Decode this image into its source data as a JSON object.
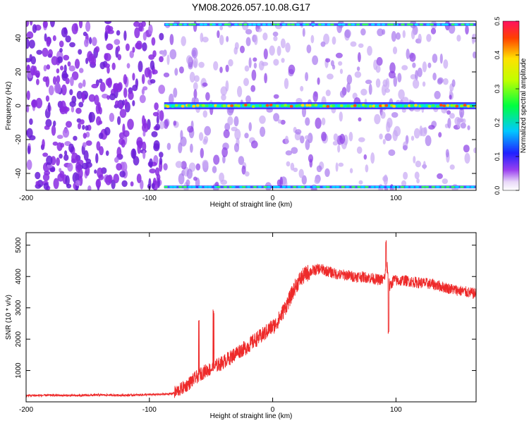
{
  "chart_data": [
    {
      "type": "heatmap",
      "title": "YM08.2026.057.10.08.G17",
      "xlabel": "Height of straight line (km)",
      "ylabel": "Frequency (Hz)",
      "xlim": [
        -200,
        165
      ],
      "ylim": [
        -50,
        50
      ],
      "xticks": [
        -200,
        -100,
        0,
        100
      ],
      "yticks": [
        -40,
        -20,
        0,
        20,
        40
      ],
      "colorbar": {
        "label": "Normalized spectral amplitude",
        "range": [
          0,
          0.5
        ],
        "ticks": [
          "0.0",
          "0.1",
          "0.2",
          "0.3",
          "0.4",
          "0.5"
        ]
      },
      "features": {
        "dense_noise_region_km": [
          -200,
          -90
        ],
        "signal_line_start_km": -88,
        "signal_line_frequency_hz": 0,
        "edge_bands_hz": [
          -48,
          48
        ]
      }
    },
    {
      "type": "line",
      "xlabel": "Height of straight line (km)",
      "ylabel": "SNR (10 * v/v)",
      "xlim": [
        -200,
        165
      ],
      "ylim": [
        0,
        5400
      ],
      "xticks": [
        -200,
        -100,
        0,
        100
      ],
      "yticks": [
        1000,
        2000,
        3000,
        4000,
        5000
      ],
      "series": [
        {
          "name": "SNR",
          "color": "#ee2a2a",
          "x": [
            -200,
            -180,
            -160,
            -140,
            -120,
            -100,
            -90,
            -82,
            -78,
            -74,
            -70,
            -66,
            -62,
            -58,
            -54,
            -50,
            -46,
            -42,
            -38,
            -34,
            -30,
            -26,
            -22,
            -18,
            -14,
            -10,
            -6,
            -2,
            2,
            6,
            10,
            14,
            18,
            22,
            26,
            30,
            34,
            38,
            42,
            46,
            50,
            55,
            60,
            65,
            70,
            75,
            80,
            85,
            90,
            93,
            95,
            98,
            102,
            106,
            110,
            115,
            120,
            125,
            130,
            135,
            140,
            145,
            150,
            155,
            160,
            165
          ],
          "y": [
            200,
            210,
            200,
            220,
            210,
            230,
            240,
            260,
            330,
            420,
            520,
            650,
            780,
            900,
            1000,
            1050,
            1150,
            1220,
            1330,
            1420,
            1550,
            1650,
            1720,
            1850,
            1980,
            2080,
            2200,
            2350,
            2450,
            2700,
            3000,
            3300,
            3650,
            3900,
            4050,
            4150,
            4200,
            4250,
            4200,
            4150,
            4100,
            4050,
            4050,
            4000,
            4000,
            3980,
            3950,
            3900,
            3900,
            4300,
            3650,
            3900,
            3850,
            3880,
            3850,
            3820,
            3800,
            3780,
            3750,
            3700,
            3650,
            3600,
            3560,
            3520,
            3480,
            3450
          ],
          "spikes": [
            {
              "x": -60,
              "y": 2700
            },
            {
              "x": -48,
              "y": 2950
            },
            {
              "x": 92,
              "y": 5200
            },
            {
              "x": 94,
              "y": 2300
            }
          ]
        }
      ]
    }
  ]
}
